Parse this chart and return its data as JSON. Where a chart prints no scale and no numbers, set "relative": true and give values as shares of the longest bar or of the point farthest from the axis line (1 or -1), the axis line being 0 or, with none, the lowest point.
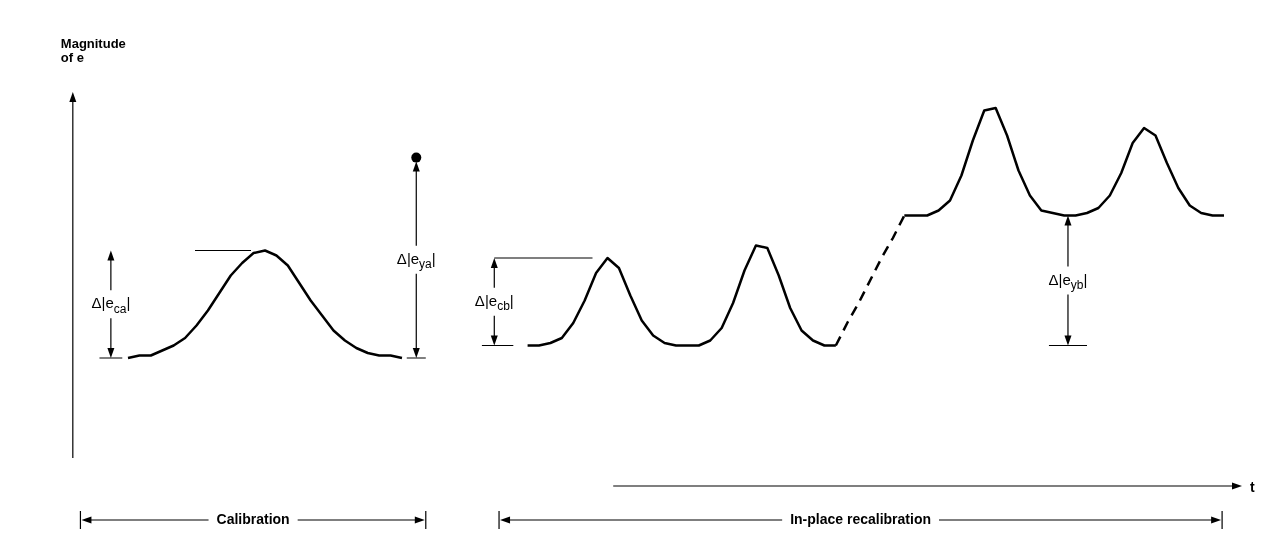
{
  "chart_data": {
    "type": "line",
    "relative": true,
    "ylabel": "Magnitude of e",
    "categories": [
      null,
      null,
      null,
      null,
      null,
      null,
      null,
      null,
      null,
      null,
      null,
      null,
      null,
      null,
      null,
      null,
      null,
      null,
      null,
      null,
      null,
      null,
      null,
      null,
      null,
      null,
      null,
      null,
      null,
      null,
      null,
      null,
      null,
      null,
      null,
      null,
      null,
      null,
      null,
      null,
      null,
      null,
      null,
      null,
      null,
      null,
      null,
      null,
      null,
      null,
      null,
      null,
      null,
      null,
      null,
      null,
      null,
      null,
      null,
      null,
      null,
      null,
      null,
      null,
      null,
      null,
      null,
      null,
      null,
      null,
      null,
      null,
      null,
      null,
      null,
      null,
      null,
      null,
      null,
      null,
      null,
      null,
      null,
      null,
      null,
      null,
      null,
      null,
      null,
      null,
      null,
      null,
      null,
      null,
      null,
      null,
      null
    ],
    "series": [
      {
        "type": "line",
        "color": "#000000",
        "marker": "none",
        "values": [
          0,
          0.01,
          0.01,
          0.03,
          0.05,
          0.08,
          0.13,
          0.19,
          0.26,
          0.33,
          0.38,
          0.42,
          0.43,
          0.41,
          0.37,
          0.3,
          0.23,
          0.17,
          0.11,
          0.07,
          0.04,
          0.02,
          0.01,
          0.01,
          0,
          null,
          null,
          null,
          null,
          null,
          null,
          null,
          null,
          null,
          null,
          null,
          null,
          null,
          null,
          null,
          null,
          null,
          null,
          null,
          null,
          null,
          null,
          null,
          null,
          null,
          null,
          null,
          null,
          null,
          null,
          null,
          null,
          null,
          null,
          null,
          null,
          null,
          null,
          null,
          null,
          null,
          null,
          null,
          null,
          null,
          null,
          null,
          null,
          null,
          null,
          null,
          null,
          null,
          null,
          null,
          null,
          null,
          null,
          null,
          null,
          null,
          null,
          null,
          null,
          null,
          null,
          null,
          null,
          null,
          null,
          null,
          null
        ]
      },
      {
        "type": "line",
        "color": "#000000",
        "marker": "none",
        "values": [
          null,
          null,
          null,
          null,
          null,
          null,
          null,
          null,
          null,
          null,
          null,
          null,
          null,
          null,
          null,
          null,
          null,
          null,
          null,
          null,
          null,
          null,
          null,
          null,
          null,
          null,
          null,
          null,
          null,
          null,
          null,
          null,
          null,
          null,
          null,
          0.05,
          0.05,
          0.06,
          0.08,
          0.14,
          0.23,
          0.34,
          0.4,
          0.36,
          0.25,
          0.15,
          0.09,
          0.06,
          0.05,
          0.05,
          0.05,
          0.07,
          0.12,
          0.22,
          0.35,
          0.45,
          0.44,
          0.33,
          0.2,
          0.11,
          0.07,
          0.05,
          0.05,
          null,
          null,
          null,
          null,
          null,
          null,
          null,
          null,
          null,
          null,
          null,
          null,
          null,
          null,
          null,
          null,
          null,
          null,
          null,
          null,
          null,
          null,
          null,
          null,
          null,
          null,
          null,
          null,
          null,
          null,
          null,
          null,
          null,
          null
        ]
      },
      {
        "type": "line",
        "color": "#000000",
        "marker": "none",
        "line_style": "dashed",
        "values": [
          null,
          null,
          null,
          null,
          null,
          null,
          null,
          null,
          null,
          null,
          null,
          null,
          null,
          null,
          null,
          null,
          null,
          null,
          null,
          null,
          null,
          null,
          null,
          null,
          null,
          null,
          null,
          null,
          null,
          null,
          null,
          null,
          null,
          null,
          null,
          null,
          null,
          null,
          null,
          null,
          null,
          null,
          null,
          null,
          null,
          null,
          null,
          null,
          null,
          null,
          null,
          null,
          null,
          null,
          null,
          null,
          null,
          null,
          null,
          null,
          null,
          null,
          0.05,
          0.14,
          0.22,
          0.31,
          0.4,
          0.48,
          0.57,
          null,
          null,
          null,
          null,
          null,
          null,
          null,
          null,
          null,
          null,
          null,
          null,
          null,
          null,
          null,
          null,
          null,
          null,
          null,
          null,
          null,
          null,
          null,
          null,
          null,
          null,
          null,
          null
        ]
      },
      {
        "type": "line",
        "color": "#000000",
        "marker": "none",
        "values": [
          null,
          null,
          null,
          null,
          null,
          null,
          null,
          null,
          null,
          null,
          null,
          null,
          null,
          null,
          null,
          null,
          null,
          null,
          null,
          null,
          null,
          null,
          null,
          null,
          null,
          null,
          null,
          null,
          null,
          null,
          null,
          null,
          null,
          null,
          null,
          null,
          null,
          null,
          null,
          null,
          null,
          null,
          null,
          null,
          null,
          null,
          null,
          null,
          null,
          null,
          null,
          null,
          null,
          null,
          null,
          null,
          null,
          null,
          null,
          null,
          null,
          null,
          null,
          null,
          null,
          null,
          null,
          null,
          0.57,
          0.57,
          0.57,
          0.59,
          0.63,
          0.73,
          0.87,
          0.99,
          1.0,
          0.89,
          0.75,
          0.65,
          0.59,
          0.58,
          0.57,
          0.57,
          0.58,
          0.6,
          0.65,
          0.74,
          0.86,
          0.92,
          0.89,
          0.78,
          0.68,
          0.61,
          0.58,
          0.57,
          0.57
        ]
      }
    ],
    "annotations": [
      "Δ|e$_{ca}$|",
      "Δ|e$_{ya}$|",
      "Δ|e$_{cb}$|",
      "Δ|e$_{yb}$|",
      "Calibration",
      "In-place recalibration",
      "t"
    ]
  }
}
